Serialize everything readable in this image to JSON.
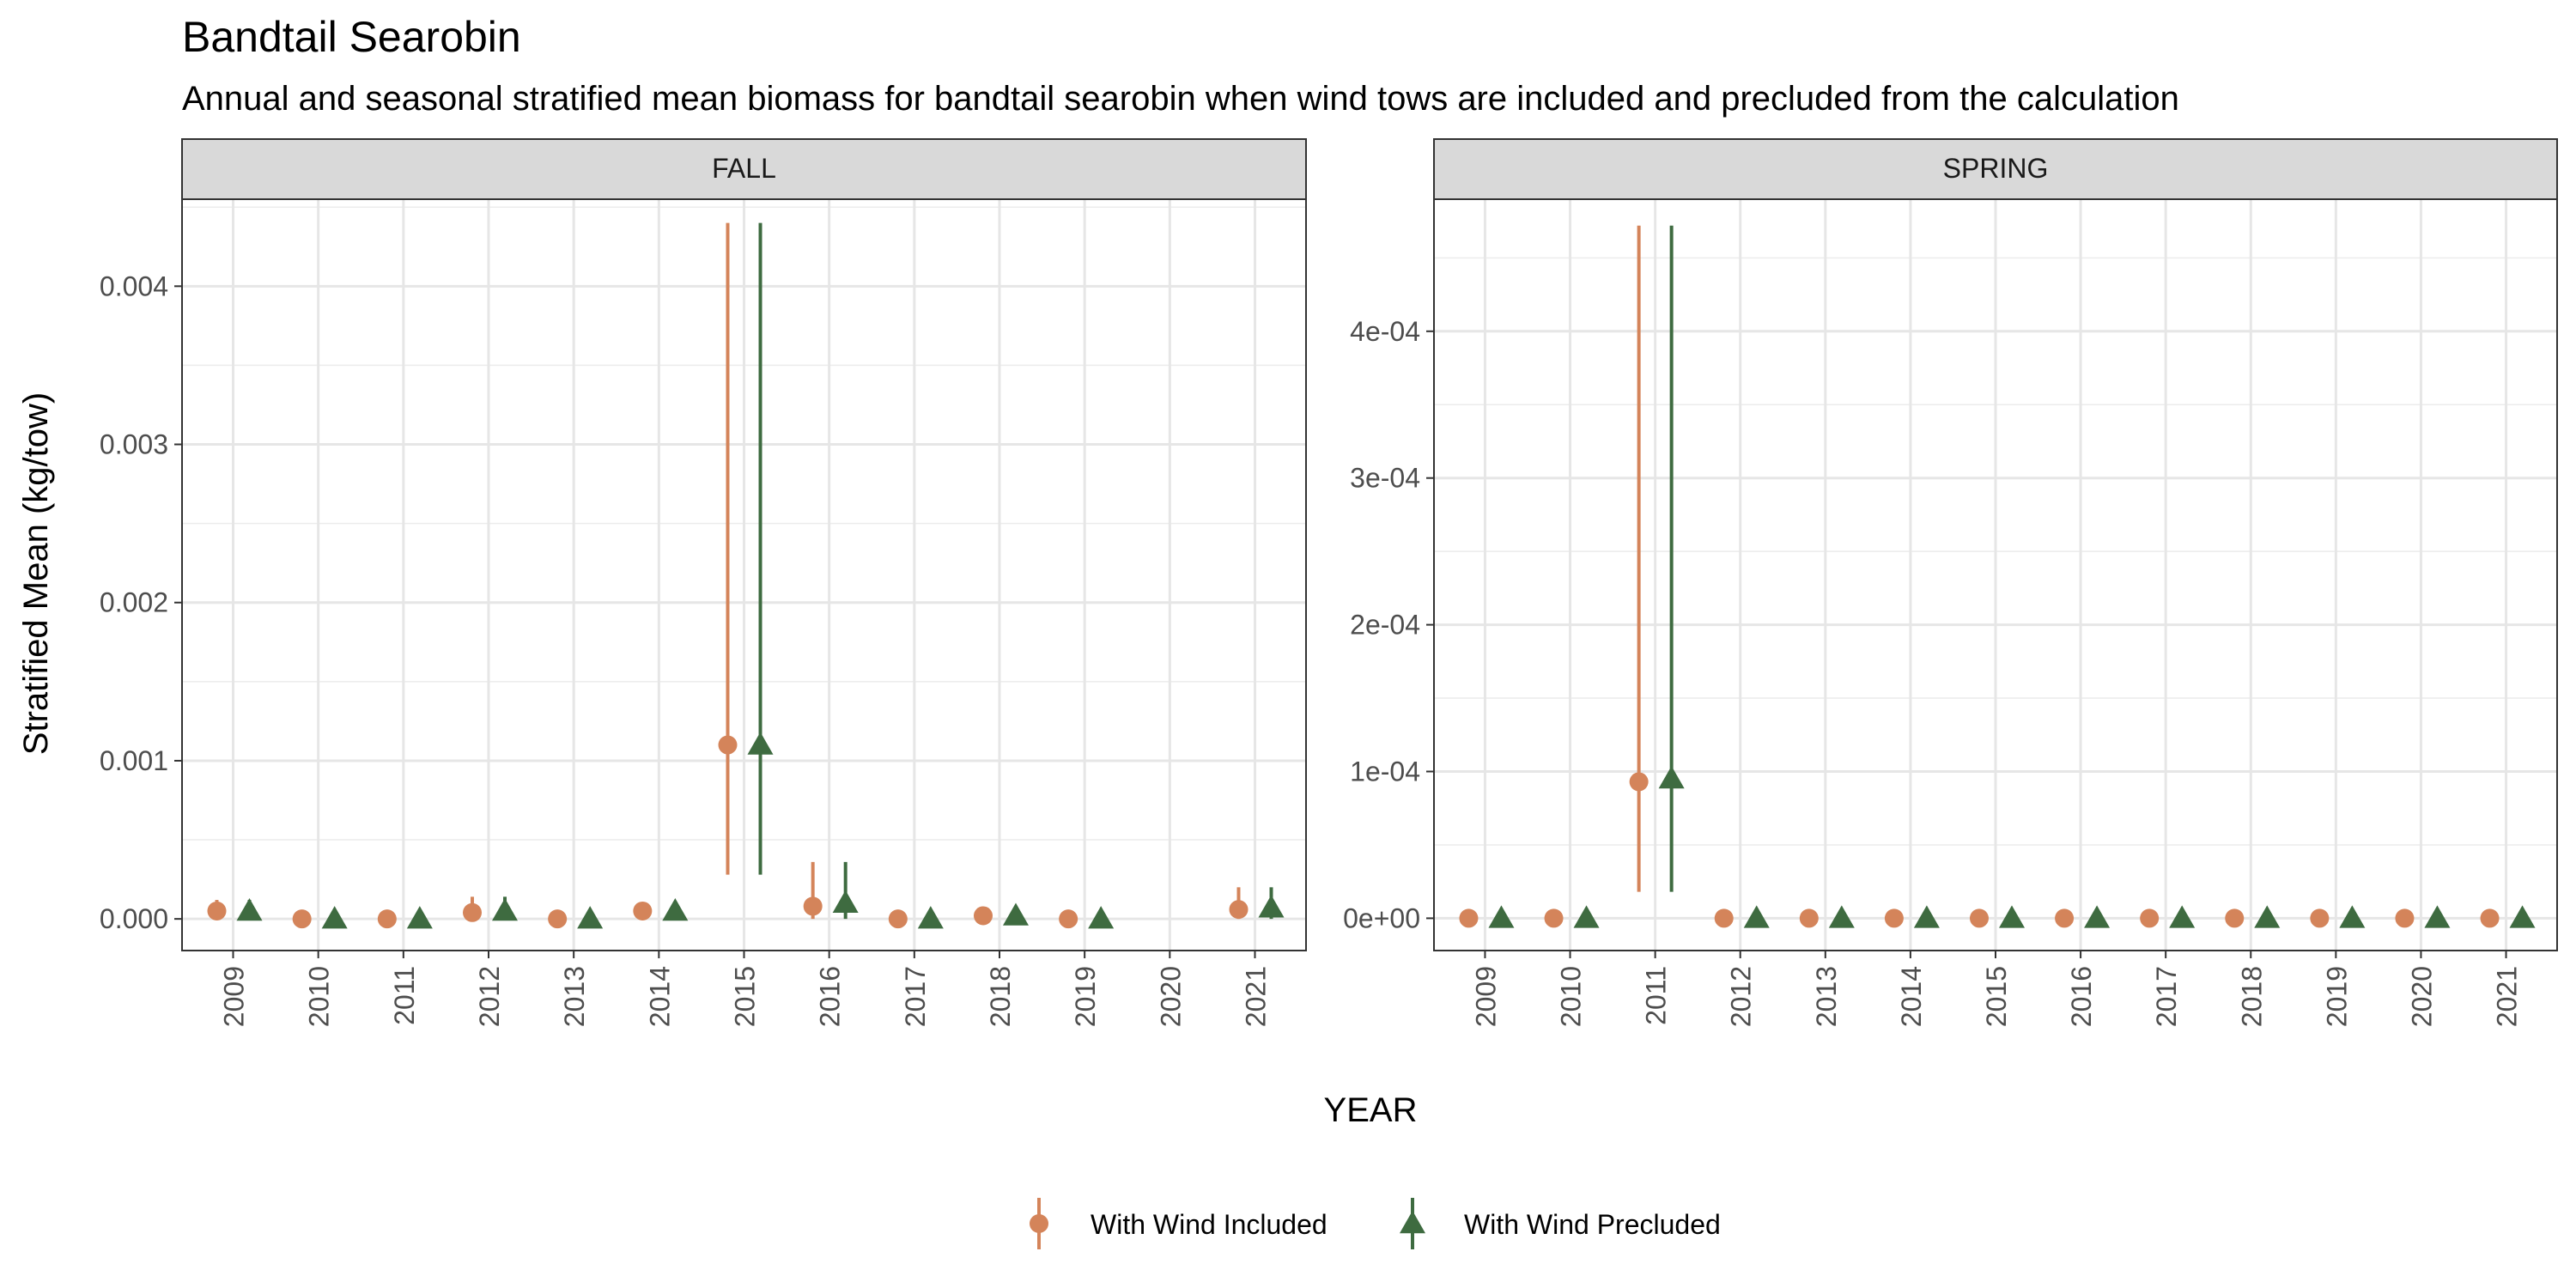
{
  "title": "Bandtail Searobin",
  "subtitle": "Annual and seasonal stratified mean biomass for bandtail searobin when wind tows are included and precluded from the calculation",
  "xlabel": "YEAR",
  "ylabel": "Stratified Mean (kg/tow)",
  "legend": {
    "position": "bottom",
    "items": [
      {
        "label": "With Wind Included",
        "color": "#D4845A",
        "shape": "circle"
      },
      {
        "label": "With Wind Precluded",
        "color": "#3E6B40",
        "shape": "triangle"
      }
    ]
  },
  "chart_data": [
    {
      "type": "scatter",
      "panel": "FALL",
      "categories": [
        "2009",
        "2010",
        "2011",
        "2012",
        "2013",
        "2014",
        "2015",
        "2016",
        "2017",
        "2018",
        "2019",
        "2020",
        "2021"
      ],
      "ylim": [
        -0.0002,
        0.00455
      ],
      "yticks": [
        0,
        0.001,
        0.002,
        0.003,
        0.004
      ],
      "ytick_labels": [
        "0.000",
        "0.001",
        "0.002",
        "0.003",
        "0.004"
      ],
      "grid": true,
      "series": [
        {
          "name": "With Wind Included",
          "values": [
            5e-05,
            0.0,
            0.0,
            4e-05,
            0.0,
            5e-05,
            0.0011,
            8e-05,
            0.0,
            2e-05,
            0.0,
            null,
            6e-05
          ],
          "lower": [
            0.0,
            0.0,
            0.0,
            0.0,
            0.0,
            1e-05,
            0.00028,
            0.0,
            0.0,
            0.0,
            0.0,
            null,
            0.0
          ],
          "upper": [
            0.00012,
            0.0,
            0.0,
            0.00014,
            0.0,
            0.0001,
            0.0044,
            0.00036,
            0.0,
            4e-05,
            0.0,
            null,
            0.0002
          ]
        },
        {
          "name": "With Wind Precluded",
          "values": [
            5e-05,
            0.0,
            0.0,
            5e-05,
            0.0,
            5e-05,
            0.0011,
            0.0001,
            0.0,
            2e-05,
            0.0,
            null,
            7e-05
          ],
          "lower": [
            0.0,
            0.0,
            0.0,
            0.0,
            0.0,
            1e-05,
            0.00028,
            0.0,
            0.0,
            0.0,
            0.0,
            null,
            0.0
          ],
          "upper": [
            0.00012,
            0.0,
            0.0,
            0.00014,
            0.0,
            0.0001,
            0.0044,
            0.00036,
            0.0,
            4e-05,
            0.0,
            null,
            0.0002
          ]
        }
      ]
    },
    {
      "type": "scatter",
      "panel": "SPRING",
      "categories": [
        "2009",
        "2010",
        "2011",
        "2012",
        "2013",
        "2014",
        "2015",
        "2016",
        "2017",
        "2018",
        "2019",
        "2020",
        "2021"
      ],
      "ylim": [
        -2.2e-05,
        0.00049
      ],
      "yticks": [
        0,
        0.0001,
        0.0002,
        0.0003,
        0.0004
      ],
      "ytick_labels": [
        "0e+00",
        "1e-04",
        "2e-04",
        "3e-04",
        "4e-04"
      ],
      "grid": true,
      "series": [
        {
          "name": "With Wind Included",
          "values": [
            0,
            0,
            9.3e-05,
            0,
            0,
            0,
            0,
            0,
            0,
            0,
            0,
            0,
            0
          ],
          "lower": [
            0,
            0,
            1.8e-05,
            0,
            0,
            0,
            0,
            0,
            0,
            0,
            0,
            0,
            0
          ],
          "upper": [
            0,
            0,
            0.000472,
            0,
            0,
            0,
            0,
            0,
            0,
            0,
            0,
            0,
            0
          ]
        },
        {
          "name": "With Wind Precluded",
          "values": [
            0,
            0,
            9.5e-05,
            0,
            0,
            0,
            0,
            0,
            0,
            0,
            0,
            0,
            0
          ],
          "lower": [
            0,
            0,
            1.8e-05,
            0,
            0,
            0,
            0,
            0,
            0,
            0,
            0,
            0,
            0
          ],
          "upper": [
            0,
            0,
            0.000472,
            0,
            0,
            0,
            0,
            0,
            0,
            0,
            0,
            0,
            0
          ]
        }
      ]
    }
  ]
}
